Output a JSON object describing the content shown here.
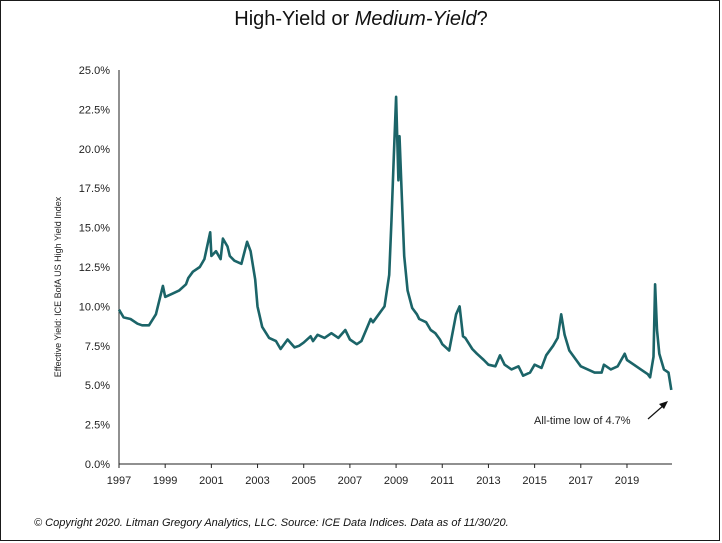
{
  "title_parts": {
    "part1": "High-Yield or ",
    "part2": "Medium-Yield",
    "part3": "?"
  },
  "footer": "© Copyright 2020. Litman Gregory Analytics, LLC. Source: ICE Data Indices. Data as of 11/30/20.",
  "chart_data": {
    "type": "line",
    "title": "High-Yield or Medium-Yield?",
    "ylabel": "Effective Yield: ICE BofA US High Yield Index",
    "xlabel": "",
    "xlim": [
      1997.0,
      2020.95
    ],
    "ylim": [
      0,
      25
    ],
    "x_ticks": [
      "1997",
      "1999",
      "2001",
      "2003",
      "2005",
      "2007",
      "2009",
      "2011",
      "2013",
      "2015",
      "2017",
      "2019"
    ],
    "y_ticks": [
      "0.0%",
      "2.5%",
      "5.0%",
      "7.5%",
      "10.0%",
      "12.5%",
      "15.0%",
      "17.5%",
      "20.0%",
      "22.5%",
      "25.0%"
    ],
    "grid": false,
    "color": "#1b6468",
    "annotation": {
      "text": "All-time low of 4.7%",
      "x": 2020.92,
      "y": 4.7
    },
    "x": [
      1997.0,
      1997.2,
      1997.5,
      1997.8,
      1998.0,
      1998.3,
      1998.6,
      1998.9,
      1999.0,
      1999.3,
      1999.6,
      1999.9,
      2000.0,
      2000.2,
      2000.5,
      2000.7,
      2000.95,
      2001.0,
      2001.2,
      2001.4,
      2001.5,
      2001.7,
      2001.8,
      2002.0,
      2002.3,
      2002.55,
      2002.7,
      2002.9,
      2003.0,
      2003.2,
      2003.5,
      2003.8,
      2004.0,
      2004.3,
      2004.6,
      2004.8,
      2005.0,
      2005.3,
      2005.4,
      2005.6,
      2005.9,
      2006.2,
      2006.5,
      2006.8,
      2007.0,
      2007.3,
      2007.5,
      2007.7,
      2007.9,
      2008.0,
      2008.3,
      2008.5,
      2008.7,
      2008.8,
      2008.9,
      2009.0,
      2009.1,
      2009.15,
      2009.25,
      2009.35,
      2009.5,
      2009.7,
      2009.9,
      2010.0,
      2010.3,
      2010.5,
      2010.7,
      2010.9,
      2011.0,
      2011.3,
      2011.6,
      2011.75,
      2011.9,
      2012.0,
      2012.3,
      2012.5,
      2012.8,
      2013.0,
      2013.3,
      2013.5,
      2013.7,
      2014.0,
      2014.3,
      2014.5,
      2014.8,
      2015.0,
      2015.3,
      2015.5,
      2015.8,
      2016.0,
      2016.15,
      2016.3,
      2016.5,
      2016.8,
      2017.0,
      2017.3,
      2017.6,
      2017.9,
      2018.0,
      2018.3,
      2018.6,
      2018.9,
      2019.0,
      2019.3,
      2019.6,
      2019.9,
      2020.0,
      2020.15,
      2020.22,
      2020.3,
      2020.4,
      2020.6,
      2020.8,
      2020.92
    ],
    "y": [
      9.8,
      9.3,
      9.2,
      8.9,
      8.8,
      8.8,
      9.5,
      11.3,
      10.6,
      10.8,
      11.0,
      11.4,
      11.8,
      12.2,
      12.5,
      13.0,
      14.7,
      13.2,
      13.5,
      13.0,
      14.3,
      13.8,
      13.2,
      12.9,
      12.7,
      14.1,
      13.5,
      11.7,
      10.0,
      8.7,
      8.0,
      7.8,
      7.3,
      7.9,
      7.4,
      7.5,
      7.7,
      8.1,
      7.8,
      8.2,
      8.0,
      8.3,
      8.0,
      8.5,
      7.9,
      7.6,
      7.8,
      8.5,
      9.2,
      9.0,
      9.6,
      10.0,
      12.0,
      15.5,
      19.5,
      23.3,
      18.0,
      20.8,
      17.0,
      13.2,
      11.0,
      9.9,
      9.5,
      9.2,
      9.0,
      8.5,
      8.3,
      7.9,
      7.6,
      7.2,
      9.5,
      10.0,
      8.1,
      8.0,
      7.3,
      7.0,
      6.6,
      6.3,
      6.2,
      6.9,
      6.3,
      6.0,
      6.2,
      5.6,
      5.8,
      6.3,
      6.1,
      6.9,
      7.5,
      8.0,
      9.5,
      8.2,
      7.2,
      6.6,
      6.2,
      6.0,
      5.8,
      5.8,
      6.3,
      6.0,
      6.2,
      7.0,
      6.6,
      6.3,
      6.0,
      5.7,
      5.5,
      6.8,
      11.4,
      8.5,
      7.0,
      6.0,
      5.8,
      4.7
    ]
  }
}
